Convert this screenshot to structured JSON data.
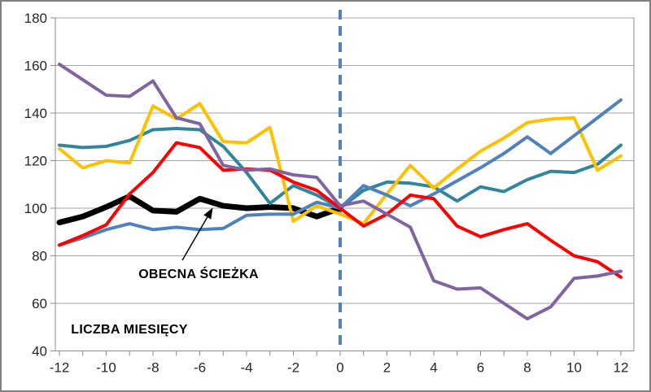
{
  "chart_data": {
    "type": "line",
    "title": "",
    "x_axis_label": "LICZBA MIESIĘCY",
    "x": [
      -12,
      -11,
      -10,
      -9,
      -8,
      -7,
      -6,
      -5,
      -4,
      -3,
      -2,
      -1,
      0,
      1,
      2,
      3,
      4,
      5,
      6,
      7,
      8,
      9,
      10,
      11,
      12
    ],
    "ylim": [
      40,
      180
    ],
    "xlim": [
      -12,
      12
    ],
    "y_ticks": [
      180,
      160,
      140,
      120,
      100,
      80,
      60,
      40
    ],
    "x_tick_labels": [
      -12,
      -10,
      -8,
      -6,
      -4,
      -2,
      0,
      2,
      4,
      6,
      8,
      10,
      12
    ],
    "x_minor_tick_step": 1,
    "grid": "horizontal-only",
    "grid_color": "#A6A6A6",
    "axis_color": "#8C8C8C",
    "zero_reference_line": {
      "x": 0,
      "style": "dashed",
      "color": "#4F81BD",
      "width": 4
    },
    "legend_position": "none",
    "series": [
      {
        "name": "obecna-sciezka",
        "label": "OBECNA ŚCIEŻKA",
        "color": "#000000",
        "width": 7,
        "x": [
          -12,
          -11,
          -10,
          -9,
          -8,
          -7,
          -6,
          -5,
          -4,
          -3,
          -2,
          -1,
          0
        ],
        "values": [
          94,
          96.5,
          100.5,
          105,
          99,
          98.5,
          104,
          101,
          100,
          100.5,
          100,
          96.5,
          100
        ]
      },
      {
        "name": "series-teal",
        "label": "",
        "color": "#31859C",
        "width": 4,
        "values": [
          126.5,
          125.5,
          126,
          128.5,
          133,
          133.5,
          133,
          126,
          115,
          102,
          109.5,
          105.5,
          100,
          107.5,
          111,
          110.5,
          109,
          103,
          109,
          107,
          112,
          115.5,
          115,
          118.5,
          126.5
        ]
      },
      {
        "name": "series-yellow",
        "label": "",
        "color": "#FFC000",
        "width": 4,
        "values": [
          125,
          117,
          120,
          119,
          143,
          137.5,
          144,
          128,
          127.5,
          134,
          94.5,
          101,
          97.5,
          93.5,
          106,
          118,
          108.5,
          116.5,
          124,
          129.5,
          136,
          137.5,
          138,
          116,
          122
        ]
      },
      {
        "name": "series-blue",
        "label": "",
        "color": "#4F81BD",
        "width": 4,
        "values": [
          84.5,
          87.5,
          91,
          93.5,
          91,
          92,
          91,
          91.5,
          97,
          97.5,
          97.5,
          102.5,
          100,
          109.5,
          105.5,
          101,
          106,
          111.5,
          117,
          123,
          130,
          123,
          130.5,
          138,
          145.5
        ]
      },
      {
        "name": "series-red",
        "label": "",
        "color": "#FF0000",
        "width": 4,
        "values": [
          84.5,
          88.5,
          93,
          106,
          115,
          127.5,
          125.5,
          116,
          116.5,
          116,
          111,
          107.5,
          100,
          92.5,
          97.5,
          105.5,
          104,
          92.5,
          88,
          91,
          93.5,
          86.5,
          80,
          77.5,
          71
        ]
      },
      {
        "name": "series-purple",
        "label": "",
        "color": "#8064A2",
        "width": 4,
        "values": [
          160.5,
          154,
          147.5,
          147,
          153.5,
          138,
          135.5,
          118,
          116,
          116.5,
          114,
          113,
          101,
          103,
          97.5,
          92,
          69.5,
          66,
          66.5,
          60,
          53.5,
          58.5,
          70.5,
          71.5,
          73.5
        ]
      }
    ]
  },
  "annotations": {
    "current_path": "OBECNA ŚCIEŻKA",
    "months_label": "LICZBA MIESIĘCY"
  }
}
